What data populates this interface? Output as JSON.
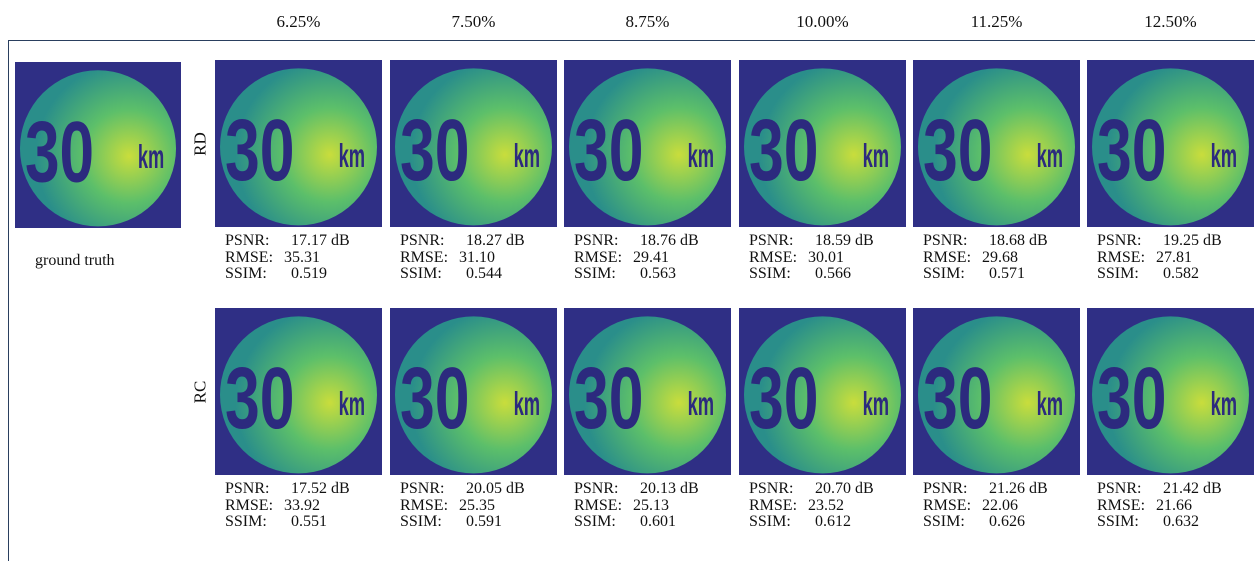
{
  "columns": [
    "6.25%",
    "7.50%",
    "8.75%",
    "10.00%",
    "11.25%",
    "12.50%"
  ],
  "sign": {
    "number": "30",
    "unit": "km"
  },
  "ground_truth": {
    "caption": "ground truth"
  },
  "metric_labels": [
    "PSNR:",
    "RMSE:",
    "SSIM:"
  ],
  "rows": [
    {
      "label": "RD",
      "cells": [
        {
          "psnr": "17.17 dB",
          "rmse": "35.31",
          "ssim": "0.519"
        },
        {
          "psnr": "18.27 dB",
          "rmse": "31.10",
          "ssim": "0.544"
        },
        {
          "psnr": "18.76 dB",
          "rmse": "29.41",
          "ssim": "0.563"
        },
        {
          "psnr": "18.59 dB",
          "rmse": "30.01",
          "ssim": "0.566"
        },
        {
          "psnr": "18.68 dB",
          "rmse": "29.68",
          "ssim": "0.571"
        },
        {
          "psnr": "19.25 dB",
          "rmse": "27.81",
          "ssim": "0.582"
        }
      ]
    },
    {
      "label": "RC",
      "cells": [
        {
          "psnr": "17.52 dB",
          "rmse": "33.92",
          "ssim": "0.551"
        },
        {
          "psnr": "20.05 dB",
          "rmse": "25.35",
          "ssim": "0.591"
        },
        {
          "psnr": "20.13 dB",
          "rmse": "25.13",
          "ssim": "0.601"
        },
        {
          "psnr": "20.70 dB",
          "rmse": "23.52",
          "ssim": "0.612"
        },
        {
          "psnr": "21.26 dB",
          "rmse": "22.06",
          "ssim": "0.626"
        },
        {
          "psnr": "21.42 dB",
          "rmse": "21.66",
          "ssim": "0.632"
        }
      ]
    }
  ]
}
